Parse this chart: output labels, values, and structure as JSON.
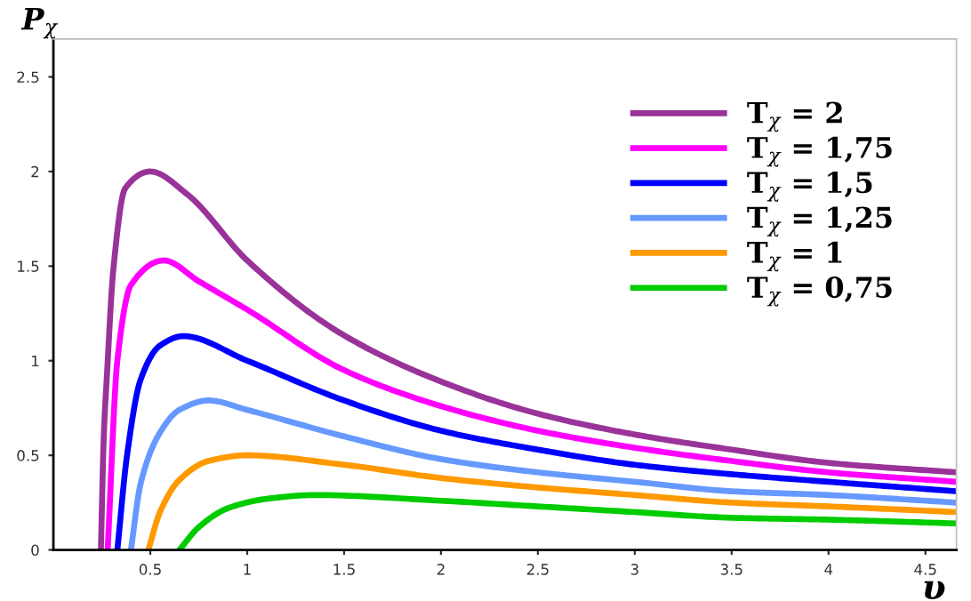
{
  "chart_data": {
    "type": "line",
    "xlabel": "υ",
    "ylabel": "P$_{χ}$",
    "xlim": [
      0,
      4.66
    ],
    "ylim": [
      0,
      2.7
    ],
    "xticks": [
      0.5,
      1,
      1.5,
      2,
      2.5,
      3,
      3.5,
      4,
      4.5
    ],
    "yticks": [
      0,
      0.5,
      1,
      1.5,
      2,
      2.5
    ],
    "grid": false,
    "legend": "top right",
    "marker": "none",
    "line_style": "solid",
    "series": [
      {
        "name": "T$_{χ}$ = 2",
        "color": "#993399",
        "x": [
          0.245,
          0.26,
          0.276,
          0.31,
          0.37,
          0.5,
          0.69,
          1.0,
          1.49,
          2.0,
          2.5,
          3.0,
          3.5,
          4.0,
          4.66
        ],
        "values": [
          0,
          0.6,
          0.92,
          1.49,
          1.91,
          2.0,
          1.88,
          1.53,
          1.14,
          0.89,
          0.72,
          0.61,
          0.53,
          0.46,
          0.41
        ]
      },
      {
        "name": "T$_{χ}$ = 1,75",
        "color": "#ff00ff",
        "x": [
          0.28,
          0.33,
          0.4,
          0.57,
          0.75,
          1.0,
          1.5,
          2.0,
          2.5,
          3.0,
          3.5,
          4.0,
          4.66
        ],
        "values": [
          0,
          1.0,
          1.4,
          1.53,
          1.42,
          1.27,
          0.95,
          0.76,
          0.63,
          0.54,
          0.47,
          0.41,
          0.36
        ]
      },
      {
        "name": "T$_{χ}$ = 1,5",
        "color": "#0000ff",
        "x": [
          0.33,
          0.38,
          0.45,
          0.55,
          0.67,
          1.0,
          1.5,
          2.0,
          2.5,
          3.0,
          3.5,
          4.0,
          4.66
        ],
        "values": [
          0,
          0.5,
          0.9,
          1.08,
          1.13,
          1.0,
          0.79,
          0.63,
          0.53,
          0.45,
          0.4,
          0.36,
          0.31
        ]
      },
      {
        "name": "T$_{χ}$ = 1,25",
        "color": "#6699ff",
        "x": [
          0.4,
          0.45,
          0.55,
          0.65,
          0.8,
          1.0,
          1.5,
          2.0,
          2.5,
          3.0,
          3.5,
          4.0,
          4.66
        ],
        "values": [
          0,
          0.35,
          0.62,
          0.74,
          0.79,
          0.74,
          0.6,
          0.48,
          0.41,
          0.36,
          0.31,
          0.29,
          0.25
        ]
      },
      {
        "name": "T$_{χ}$ = 1",
        "color": "#ff9900",
        "x": [
          0.49,
          0.55,
          0.65,
          0.8,
          1.0,
          1.5,
          2.0,
          2.5,
          3.0,
          3.5,
          4.0,
          4.66
        ],
        "values": [
          0,
          0.2,
          0.37,
          0.47,
          0.5,
          0.45,
          0.38,
          0.33,
          0.29,
          0.25,
          0.23,
          0.2
        ]
      },
      {
        "name": "T$_{χ}$ = 0,75",
        "color": "#00cc00",
        "x": [
          0.65,
          0.75,
          0.9,
          1.1,
          1.35,
          2.0,
          2.5,
          3.0,
          3.5,
          4.0,
          4.66
        ],
        "values": [
          0,
          0.12,
          0.22,
          0.27,
          0.29,
          0.26,
          0.23,
          0.2,
          0.17,
          0.16,
          0.14
        ]
      }
    ]
  }
}
